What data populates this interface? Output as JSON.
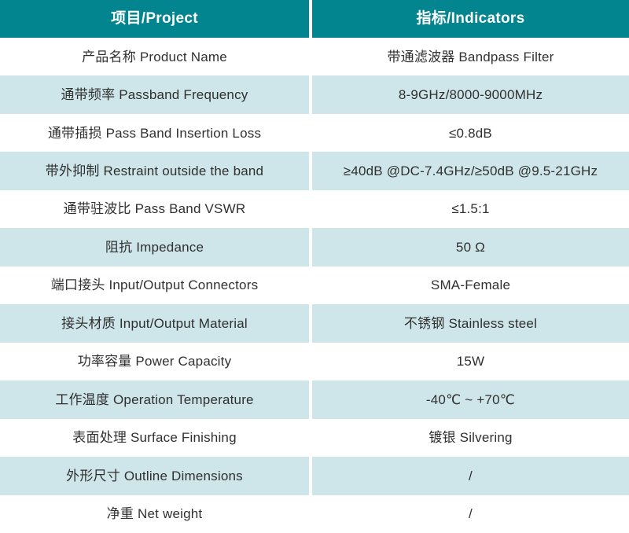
{
  "colors": {
    "header_bg": "#03858F",
    "header_text": "#FFFFFF",
    "row_bg": "#FFFFFF",
    "row_alt_bg": "#CEE5E9",
    "text_color": "#303030",
    "gap_color": "#FFFFFF"
  },
  "table": {
    "header": {
      "project_label": "项目/Project",
      "indicators_label": "指标/Indicators"
    },
    "rows": [
      {
        "project": "产品名称 Product Name",
        "indicator": "带通滤波器 Bandpass Filter"
      },
      {
        "project": "通带频率 Passband Frequency",
        "indicator": "8-9GHz/8000-9000MHz"
      },
      {
        "project": "通带插损 Pass Band Insertion Loss",
        "indicator": "≤0.8dB"
      },
      {
        "project": "带外抑制 Restraint outside the band",
        "indicator": "≥40dB @DC-7.4GHz/≥50dB @9.5-21GHz"
      },
      {
        "project": "通带驻波比 Pass Band VSWR",
        "indicator": "≤1.5:1"
      },
      {
        "project": "阻抗 Impedance",
        "indicator": "50 Ω"
      },
      {
        "project": "端口接头 Input/Output Connectors",
        "indicator": "SMA-Female"
      },
      {
        "project": "接头材质 Input/Output Material",
        "indicator": "不锈钢 Stainless steel"
      },
      {
        "project": "功率容量 Power Capacity",
        "indicator": "15W"
      },
      {
        "project": "工作温度 Operation Temperature",
        "indicator": "-40℃ ~ +70℃"
      },
      {
        "project": "表面处理 Surface Finishing",
        "indicator": "镀银 Silvering"
      },
      {
        "project": "外形尺寸 Outline Dimensions",
        "indicator": "/"
      },
      {
        "project": "净重 Net weight",
        "indicator": "/"
      }
    ]
  }
}
